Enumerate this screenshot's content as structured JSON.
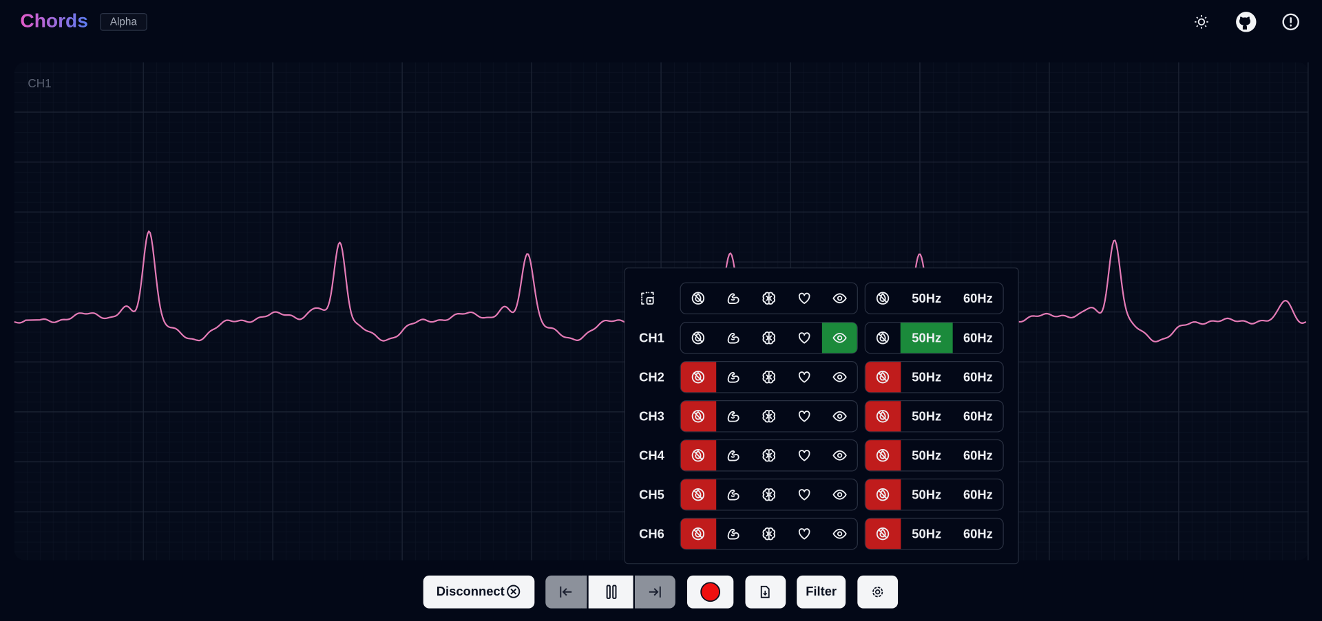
{
  "header": {
    "title": "Chords",
    "badge": "Alpha"
  },
  "plot": {
    "channel_label": "CH1"
  },
  "channel_panel": {
    "rows": [
      {
        "label": "CH1"
      },
      {
        "label": "CH2"
      },
      {
        "label": "CH3"
      },
      {
        "label": "CH4"
      },
      {
        "label": "CH5"
      },
      {
        "label": "CH6"
      }
    ],
    "notch_labels": [
      "50Hz",
      "60Hz"
    ]
  },
  "controls": {
    "disconnect": "Disconnect",
    "filter": "Filter"
  }
}
